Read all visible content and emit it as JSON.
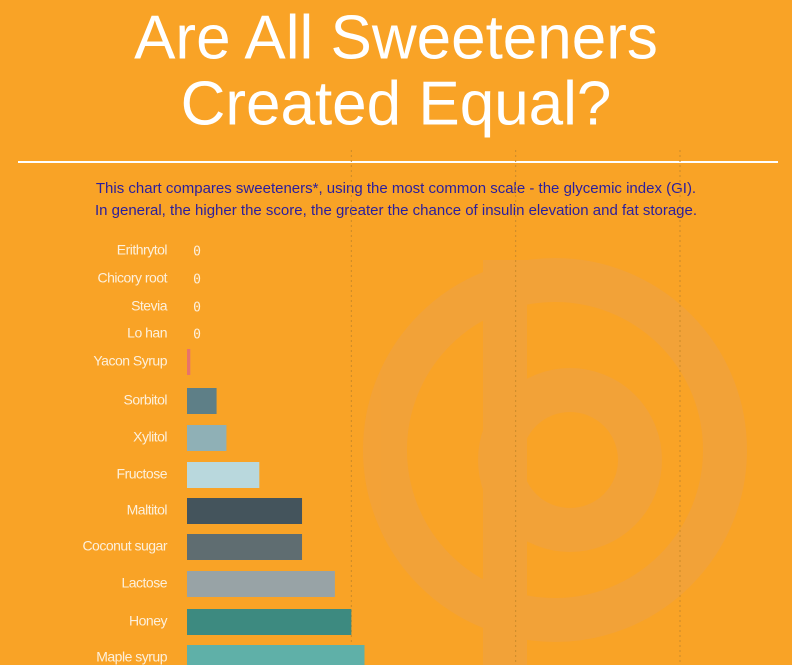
{
  "chart_data": {
    "type": "barh",
    "title": [
      "Are All Sweeteners",
      "Created Equal?"
    ],
    "subtitle": [
      "This chart compares sweeteners*, using the most common scale - the glycemic index (GI).",
      "In general, the higher the score, the greater the chance of insulin elevation and fat storage."
    ],
    "categories": [
      "Erithrytol",
      "Chicory root",
      "Stevia",
      "Lo han",
      "Yacon Syrup",
      "Sorbitol",
      "Xylitol",
      "Fructose",
      "Maltitol",
      "Coconut sugar",
      "Lactose",
      "Honey",
      "Maple syrup"
    ],
    "values": [
      0,
      0,
      0,
      0,
      1,
      9,
      12,
      22,
      35,
      35,
      45,
      50,
      54
    ],
    "colors": [
      "#5e7f87",
      "#5e7f87",
      "#5e7f87",
      "#5e7f87",
      "#e8736b",
      "#5e7f87",
      "#8fb0b6",
      "#b9d8dd",
      "#44545c",
      "#5f6d71",
      "#98a3a6",
      "#3d8a80",
      "#5fb0a8"
    ],
    "xlim": [
      0,
      150
    ],
    "xticks": [
      50,
      100,
      150
    ],
    "grid": true
  }
}
